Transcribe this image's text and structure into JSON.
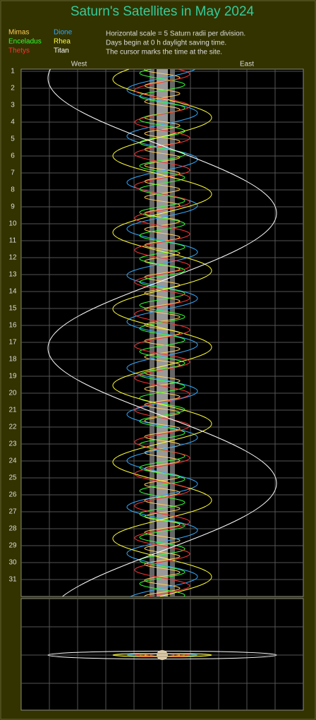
{
  "header": {
    "title": "Saturn's Satellites in May 2024"
  },
  "legend": [
    {
      "name": "Mimas",
      "color": "#ffcc55"
    },
    {
      "name": "Dione",
      "color": "#33aaff"
    },
    {
      "name": "Enceladus",
      "color": "#33ff33"
    },
    {
      "name": "Rhea",
      "color": "#ffff33"
    },
    {
      "name": "Thetys",
      "color": "#ff3333"
    },
    {
      "name": "Titan",
      "color": "#ffffff"
    }
  ],
  "notes": [
    "Horizontal scale = 5 Saturn radii per division.",
    "Days begin at 0 h daylight saving time.",
    "The cursor marks the time at the site."
  ],
  "directions": {
    "west": "West",
    "east": "East"
  },
  "days": [
    1,
    2,
    3,
    4,
    5,
    6,
    7,
    8,
    9,
    10,
    11,
    12,
    13,
    14,
    15,
    16,
    17,
    18,
    19,
    20,
    21,
    22,
    23,
    24,
    25,
    26,
    27,
    28,
    29,
    30,
    31
  ]
}
